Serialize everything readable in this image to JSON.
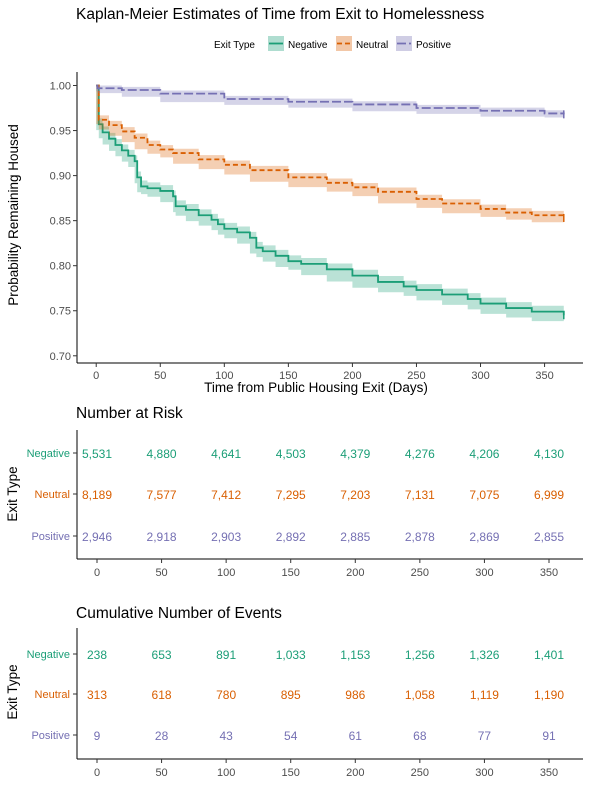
{
  "colors": {
    "negative": "#1b9e77",
    "neutral": "#d95f02",
    "positive": "#7570b3"
  },
  "chart_data": [
    {
      "type": "line",
      "title": "Kaplan-Meier Estimates of Time from Exit to Homelessness",
      "xlabel": "Time from Public Housing Exit (Days)",
      "ylabel": "Probability Remaining Housed",
      "xlim": [
        -15,
        380
      ],
      "ylim": [
        0.692,
        1.015
      ],
      "xticks": [
        "0",
        "50",
        "100",
        "150",
        "200",
        "250",
        "300",
        "350"
      ],
      "yticks": [
        "0.70",
        "0.75",
        "0.80",
        "0.85",
        "0.90",
        "0.95",
        "1.00"
      ],
      "grid": false,
      "legend": {
        "title": "Exit Type",
        "position": "top"
      },
      "series": [
        {
          "name": "Negative",
          "style": "solid",
          "x": [
            0,
            2,
            5,
            10,
            15,
            20,
            25,
            30,
            32,
            35,
            40,
            50,
            60,
            62,
            70,
            80,
            90,
            95,
            100,
            110,
            120,
            125,
            130,
            140,
            150,
            160,
            180,
            200,
            220,
            240,
            250,
            270,
            290,
            300,
            320,
            340,
            365
          ],
          "y": [
            1.0,
            0.957,
            0.948,
            0.941,
            0.934,
            0.928,
            0.922,
            0.916,
            0.898,
            0.888,
            0.886,
            0.883,
            0.877,
            0.866,
            0.862,
            0.856,
            0.851,
            0.846,
            0.841,
            0.837,
            0.831,
            0.82,
            0.816,
            0.811,
            0.805,
            0.802,
            0.796,
            0.789,
            0.782,
            0.777,
            0.773,
            0.768,
            0.763,
            0.758,
            0.753,
            0.749,
            0.745
          ]
        },
        {
          "name": "Neutral",
          "style": "dashed",
          "x": [
            0,
            2,
            10,
            20,
            30,
            40,
            50,
            60,
            80,
            100,
            120,
            150,
            180,
            200,
            220,
            250,
            270,
            300,
            320,
            340,
            365
          ],
          "y": [
            1.0,
            0.962,
            0.956,
            0.949,
            0.942,
            0.934,
            0.929,
            0.925,
            0.918,
            0.912,
            0.906,
            0.898,
            0.892,
            0.887,
            0.882,
            0.874,
            0.869,
            0.863,
            0.859,
            0.856,
            0.853
          ]
        },
        {
          "name": "Positive",
          "style": "longdash",
          "x": [
            0,
            1,
            20,
            50,
            100,
            150,
            200,
            250,
            300,
            350,
            365
          ],
          "y": [
            1.0,
            0.997,
            0.995,
            0.991,
            0.985,
            0.982,
            0.979,
            0.975,
            0.972,
            0.969,
            0.968
          ]
        }
      ]
    },
    {
      "type": "table",
      "title": "Number at Risk",
      "ylabel": "Exit Type",
      "columns": [
        0,
        50,
        100,
        150,
        200,
        250,
        300,
        350
      ],
      "rows": [
        {
          "name": "Negative",
          "values": [
            "5,531",
            "4,880",
            "4,641",
            "4,503",
            "4,379",
            "4,276",
            "4,206",
            "4,130"
          ]
        },
        {
          "name": "Neutral",
          "values": [
            "8,189",
            "7,577",
            "7,412",
            "7,295",
            "7,203",
            "7,131",
            "7,075",
            "6,999"
          ]
        },
        {
          "name": "Positive",
          "values": [
            "2,946",
            "2,918",
            "2,903",
            "2,892",
            "2,885",
            "2,878",
            "2,869",
            "2,855"
          ]
        }
      ]
    },
    {
      "type": "table",
      "title": "Cumulative Number of Events",
      "ylabel": "Exit Type",
      "columns": [
        0,
        50,
        100,
        150,
        200,
        250,
        300,
        350
      ],
      "rows": [
        {
          "name": "Negative",
          "values": [
            "238",
            "653",
            "891",
            "1,033",
            "1,153",
            "1,256",
            "1,326",
            "1,401"
          ]
        },
        {
          "name": "Neutral",
          "values": [
            "313",
            "618",
            "780",
            "895",
            "986",
            "1,058",
            "1,119",
            "1,190"
          ]
        },
        {
          "name": "Positive",
          "values": [
            "9",
            "28",
            "43",
            "54",
            "61",
            "68",
            "77",
            "91"
          ]
        }
      ]
    }
  ]
}
